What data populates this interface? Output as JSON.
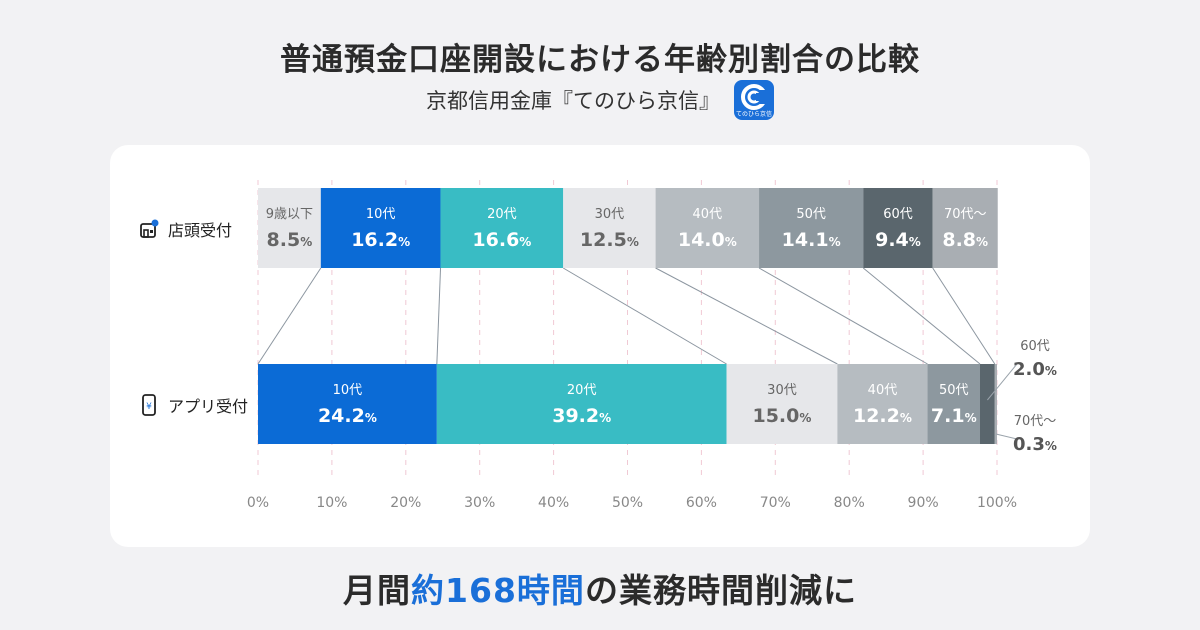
{
  "title": "普通預金口座開設における年齢別割合の比較",
  "subtitle": "京都信用金庫『てのひら京信』",
  "app_icon": {
    "name": "tenohira-kyoshin-app-icon",
    "caption": "てのひら京信",
    "color": "#1a6fd8"
  },
  "footer": {
    "prefix": "月間",
    "highlight": "約168時間",
    "suffix": "の業務時間削減に"
  },
  "rows": [
    {
      "label": "店頭受付",
      "icon": "store-icon"
    },
    {
      "label": "アプリ受付",
      "icon": "smartphone-yen-icon"
    }
  ],
  "chart_data": {
    "type": "bar",
    "orientation": "horizontal-stacked-100",
    "xlim": [
      0,
      100
    ],
    "xticks": [
      "0%",
      "10%",
      "20%",
      "30%",
      "40%",
      "50%",
      "60%",
      "70%",
      "80%",
      "90%",
      "100%"
    ],
    "grid": "vertical-dashed",
    "unit": "%",
    "categories": [
      "店頭受付",
      "アプリ受付"
    ],
    "series": [
      {
        "name": "9歳以下",
        "color": "#e6e7ea",
        "text_color": "#666666",
        "values": [
          8.5,
          null
        ]
      },
      {
        "name": "10代",
        "color": "#0b6bd6",
        "text_color": "#ffffff",
        "values": [
          16.2,
          24.2
        ]
      },
      {
        "name": "20代",
        "color": "#39bcc4",
        "text_color": "#ffffff",
        "values": [
          16.6,
          39.2
        ]
      },
      {
        "name": "30代",
        "color": "#e6e7ea",
        "text_color": "#666666",
        "values": [
          12.5,
          15.0
        ]
      },
      {
        "name": "40代",
        "color": "#b6bcc1",
        "text_color": "#ffffff",
        "values": [
          14.0,
          12.2
        ]
      },
      {
        "name": "50代",
        "color": "#8d989f",
        "text_color": "#ffffff",
        "values": [
          14.1,
          7.1
        ]
      },
      {
        "name": "60代",
        "color": "#5a666d",
        "text_color": "#ffffff",
        "values": [
          9.4,
          2.0
        ]
      },
      {
        "name": "70代〜",
        "color": "#a9aeb3",
        "text_color": "#ffffff",
        "values": [
          8.8,
          0.3
        ]
      }
    ]
  }
}
